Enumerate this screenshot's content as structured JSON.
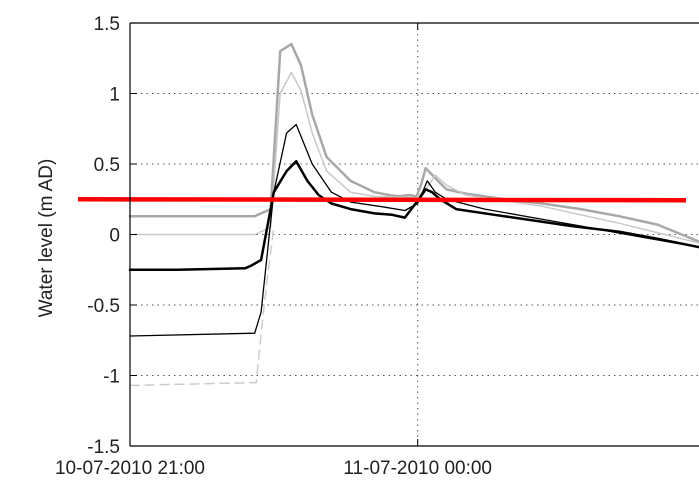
{
  "chart_data": {
    "type": "line",
    "title": "",
    "xlabel": "",
    "ylabel": "Water level (m AD)",
    "ylim": [
      -1.5,
      1.5
    ],
    "xlim": [
      "10-07-2010 21:00",
      "11-07-2010 02:56"
    ],
    "yticks": [
      "-1.5",
      "-1",
      "-0.5",
      "0",
      "0.5",
      "1",
      "1.5"
    ],
    "xticks": [
      "10-07-2010 21:00",
      "11-07-2010 00:00"
    ],
    "grid": true,
    "legend": "none",
    "series": [
      {
        "color": "#a8a8a8",
        "width": 2.5,
        "dash": "",
        "x": [
          "10-07-2010 21:00",
          "10-07-2010 22:18",
          "10-07-2010 22:28",
          "10-07-2010 22:34",
          "10-07-2010 22:41",
          "10-07-2010 22:47",
          "10-07-2010 22:54",
          "10-07-2010 23:03",
          "10-07-2010 23:18",
          "10-07-2010 23:33",
          "10-07-2010 23:42",
          "10-07-2010 23:48",
          "10-07-2010 23:55",
          "10-07-2010 23:59",
          "10-07-2010 23:59",
          "11-07-2010 00:02",
          "11-07-2010 00:05",
          "11-07-2010 00:11",
          "11-07-2010 00:18",
          "11-07-2010 00:30",
          "11-07-2010 00:54",
          "11-07-2010 01:18",
          "11-07-2010 01:42",
          "11-07-2010 02:06",
          "11-07-2010 02:30",
          "11-07-2010 02:56"
        ],
        "y": [
          0.13,
          0.13,
          0.18,
          1.3,
          1.35,
          1.2,
          0.85,
          0.55,
          0.38,
          0.3,
          0.28,
          0.27,
          0.28,
          0.27,
          0.26,
          0.35,
          0.47,
          0.4,
          0.32,
          0.29,
          0.25,
          0.22,
          0.18,
          0.13,
          0.07,
          -0.05
        ]
      },
      {
        "color": "#c8c8c8",
        "width": 1.5,
        "dash": "",
        "x": [
          "10-07-2010 21:00",
          "10-07-2010 22:18",
          "10-07-2010 22:28",
          "10-07-2010 22:34",
          "10-07-2010 22:41",
          "10-07-2010 22:47",
          "10-07-2010 22:54",
          "10-07-2010 23:03",
          "10-07-2010 23:18",
          "10-07-2010 23:33",
          "10-07-2010 23:59",
          "11-07-2010 00:05",
          "11-07-2010 00:11",
          "11-07-2010 00:18",
          "11-07-2010 00:30",
          "11-07-2010 00:54",
          "11-07-2010 01:18",
          "11-07-2010 01:42",
          "11-07-2010 02:06",
          "11-07-2010 02:56"
        ],
        "y": [
          0.0,
          0.0,
          0.05,
          1.0,
          1.15,
          1.02,
          0.72,
          0.45,
          0.3,
          0.27,
          0.26,
          0.32,
          0.42,
          0.35,
          0.28,
          0.24,
          0.2,
          0.14,
          0.08,
          -0.06
        ]
      },
      {
        "color": "#000000",
        "width": 2.5,
        "dash": "",
        "x": [
          "10-07-2010 21:00",
          "10-07-2010 21:30",
          "10-07-2010 22:12",
          "10-07-2010 22:16",
          "10-07-2010 22:22",
          "10-07-2010 22:30",
          "10-07-2010 22:38",
          "10-07-2010 22:44",
          "10-07-2010 22:51",
          "10-07-2010 22:58",
          "10-07-2010 23:06",
          "10-07-2010 23:18",
          "10-07-2010 23:33",
          "10-07-2010 23:44",
          "10-07-2010 23:52",
          "11-07-2010 00:00",
          "11-07-2010 00:05",
          "11-07-2010 00:09",
          "11-07-2010 00:14",
          "11-07-2010 00:24",
          "11-07-2010 00:48",
          "11-07-2010 01:12",
          "11-07-2010 01:36",
          "11-07-2010 02:06",
          "11-07-2010 02:30",
          "11-07-2010 02:56"
        ],
        "y": [
          -0.25,
          -0.25,
          -0.24,
          -0.22,
          -0.18,
          0.3,
          0.45,
          0.52,
          0.38,
          0.28,
          0.22,
          0.18,
          0.15,
          0.14,
          0.12,
          0.24,
          0.32,
          0.3,
          0.25,
          0.18,
          0.14,
          0.1,
          0.06,
          0.02,
          -0.03,
          -0.09
        ]
      },
      {
        "color": "#000000",
        "width": 1.3,
        "dash": "",
        "x": [
          "10-07-2010 21:00",
          "10-07-2010 22:18",
          "10-07-2010 22:22",
          "10-07-2010 22:30",
          "10-07-2010 22:38",
          "10-07-2010 22:44",
          "10-07-2010 22:54",
          "10-07-2010 23:06",
          "10-07-2010 23:18",
          "10-07-2010 23:36",
          "10-07-2010 23:52",
          "11-07-2010 00:00",
          "11-07-2010 00:06",
          "11-07-2010 00:11",
          "11-07-2010 00:18",
          "11-07-2010 00:42",
          "11-07-2010 01:12",
          "11-07-2010 01:42",
          "11-07-2010 02:06",
          "11-07-2010 02:56"
        ],
        "y": [
          -0.72,
          -0.7,
          -0.55,
          0.3,
          0.72,
          0.78,
          0.5,
          0.3,
          0.23,
          0.2,
          0.17,
          0.22,
          0.38,
          0.3,
          0.25,
          0.18,
          0.12,
          0.06,
          0.01,
          -0.09
        ]
      },
      {
        "color": "#cccccc",
        "width": 1.5,
        "dash": "9,6",
        "x": [
          "10-07-2010 21:00",
          "10-07-2010 22:19",
          "10-07-2010 22:22",
          "10-07-2010 22:26",
          "10-07-2010 22:30"
        ],
        "y": [
          -1.07,
          -1.05,
          -0.7,
          -0.3,
          0.05
        ]
      }
    ],
    "reference_line": {
      "y": 0.25,
      "color": "#ff0000",
      "x_start": "10-07-2010 21:00",
      "x_end": "11-07-2010 02:56"
    }
  }
}
